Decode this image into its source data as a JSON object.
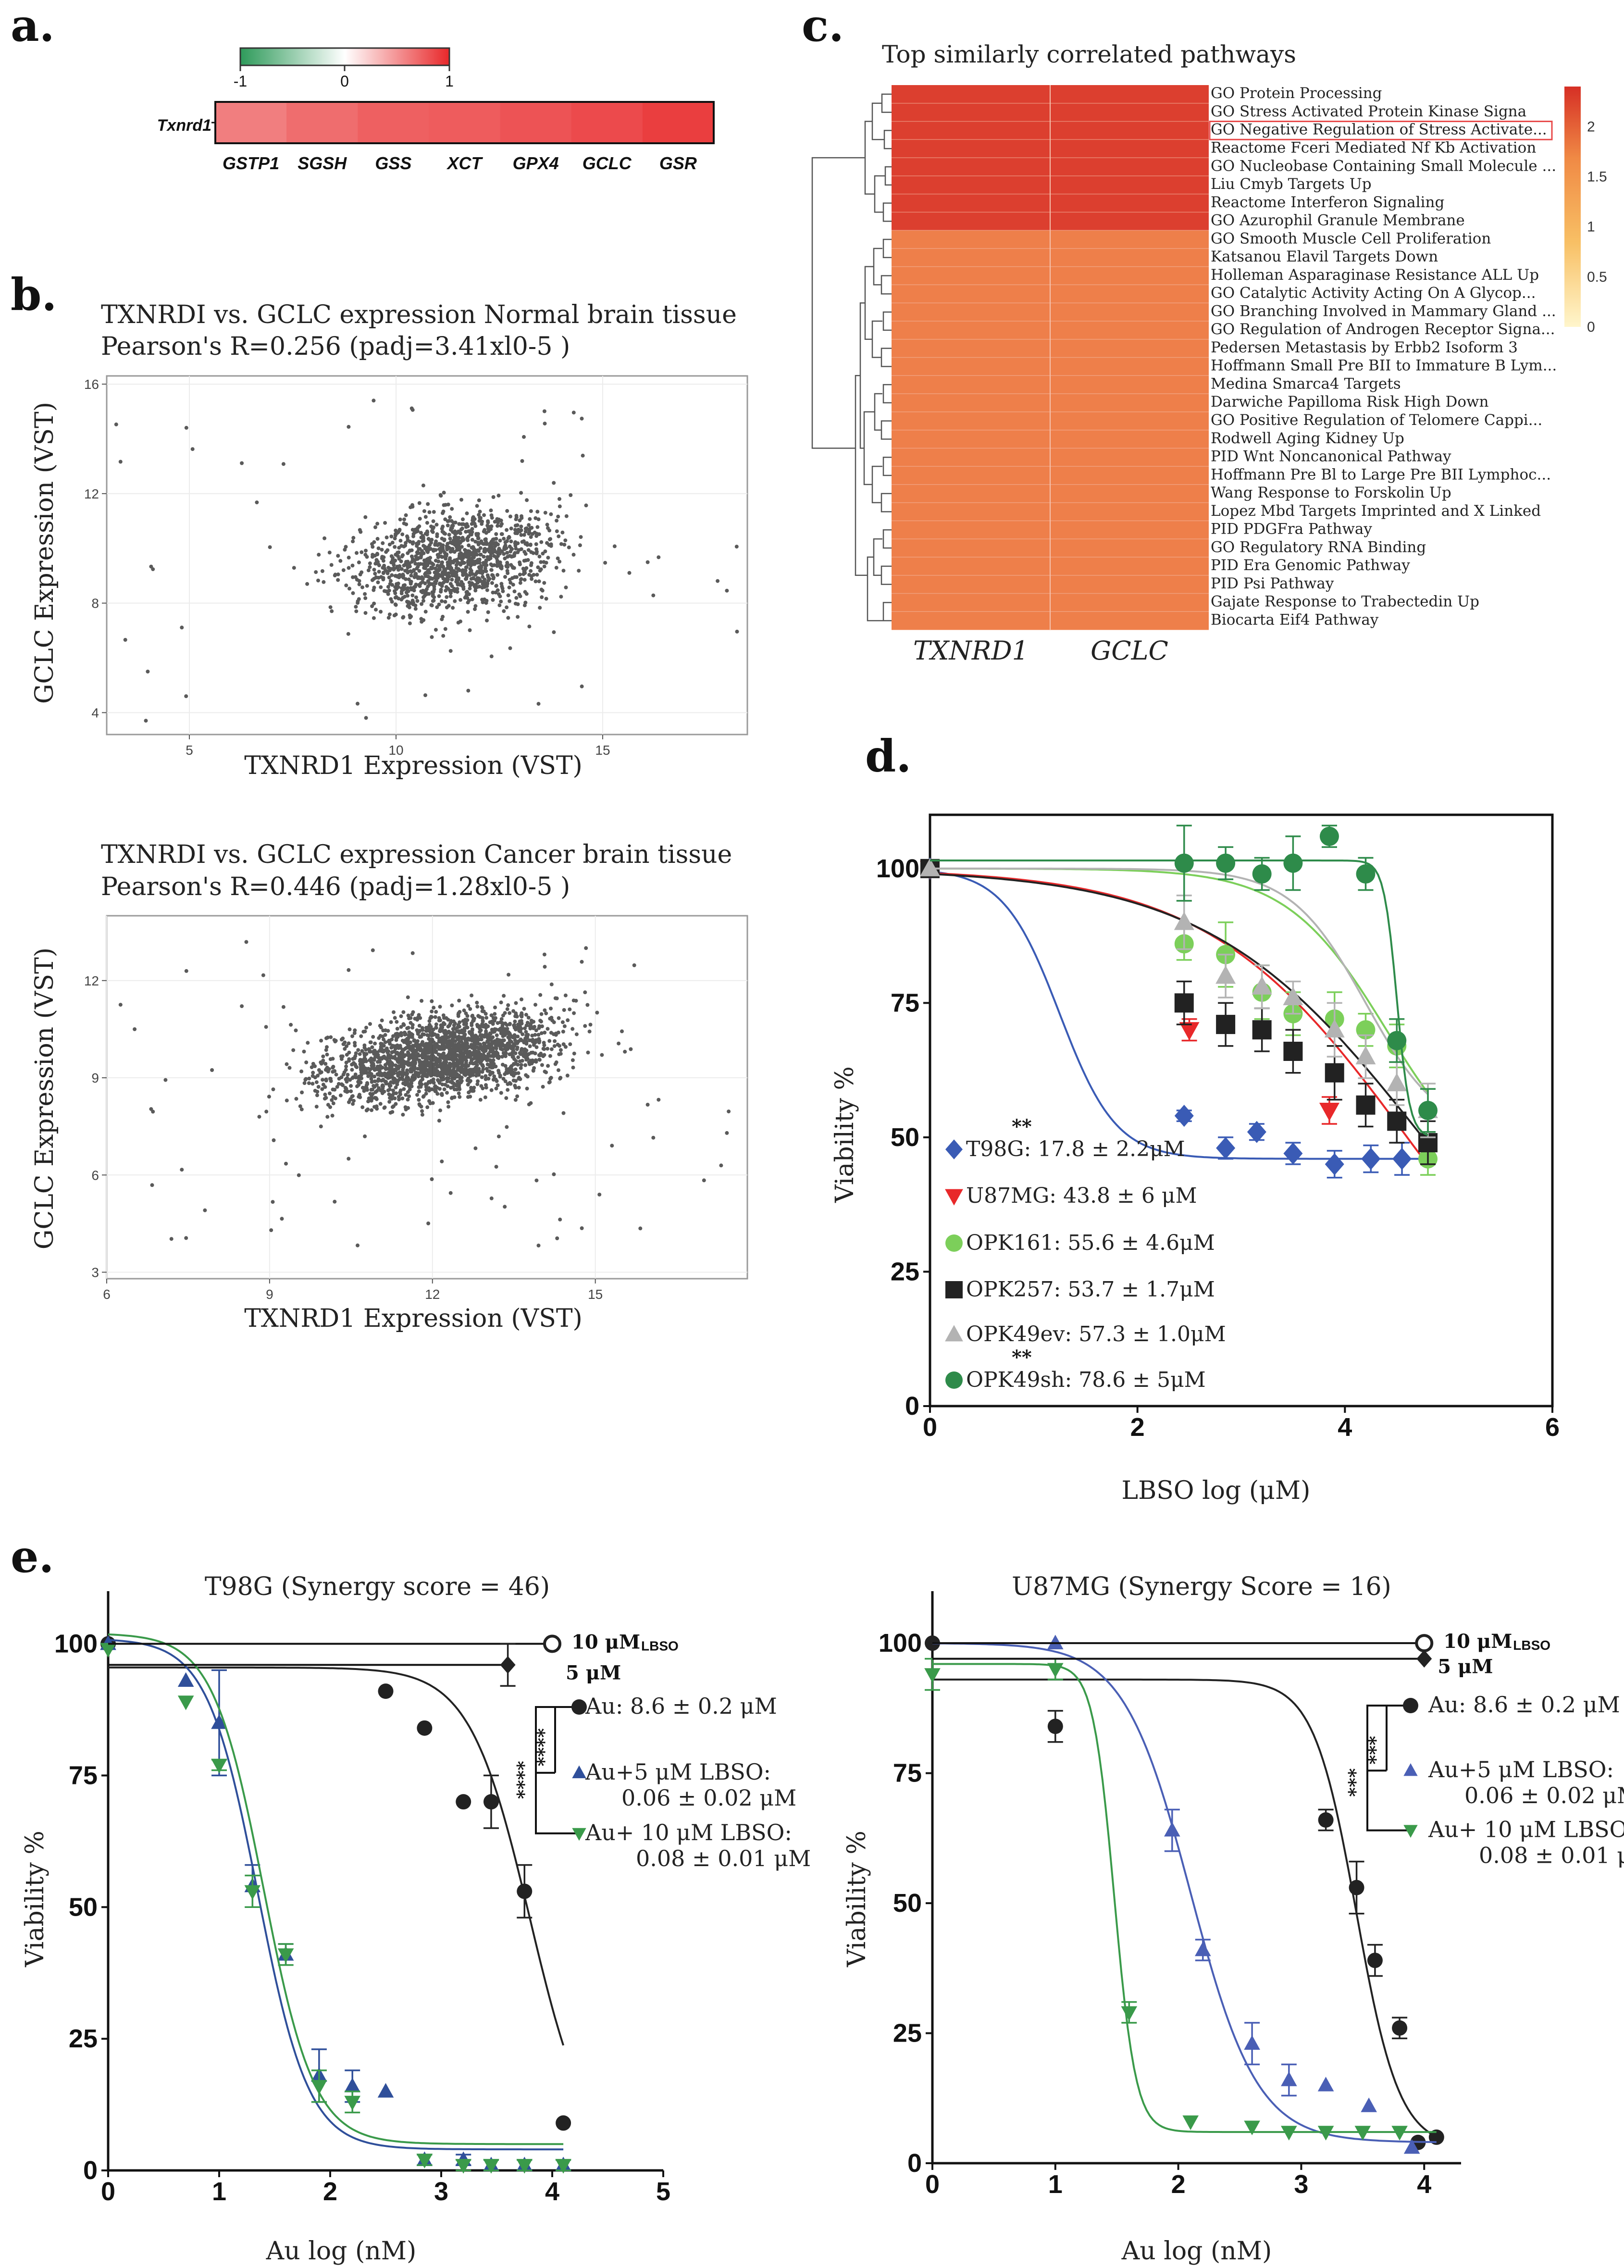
{
  "panels": {
    "a": {
      "letter": "a."
    },
    "b": {
      "letter": "b."
    },
    "c": {
      "letter": "c."
    },
    "d": {
      "letter": "d."
    },
    "e": {
      "letter": "e."
    }
  },
  "chart_data": [
    {
      "id": "a",
      "type": "heatmap",
      "title": "",
      "row_label": "Txnrd1",
      "columns": [
        "GSTP1",
        "SGSH",
        "GSS",
        "XCT",
        "GPX4",
        "GCLC",
        "GSR"
      ],
      "values": [
        0.6,
        0.68,
        0.74,
        0.76,
        0.8,
        0.84,
        0.9
      ],
      "colorbar": {
        "min": -1,
        "max": 1,
        "ticks": [
          "-1",
          "0",
          "1"
        ],
        "low_color": "#2e9a5a",
        "mid_color": "#ffffff",
        "high_color": "#e8282a"
      }
    },
    {
      "id": "b1",
      "type": "scatter",
      "title_line1": "TXNRDI vs. GCLC expression Normal brain tissue",
      "title_line2": "Pearson's R=0.256 (padj=3.41xl0-5 )",
      "xlabel": "TXNRD1 Expression (VST)",
      "ylabel": "GCLC Expression (VST)",
      "xlim": [
        3,
        18.5
      ],
      "ylim": [
        3.2,
        16.3
      ],
      "xticks": [
        5,
        10,
        15
      ],
      "yticks": [
        4,
        8,
        12,
        16
      ],
      "n_points": 3600,
      "cluster": {
        "cx": 11.4,
        "cy": 9.6,
        "sx": 1.7,
        "sy": 1.2,
        "r": 0.256
      }
    },
    {
      "id": "b2",
      "type": "scatter",
      "title_line1": "TXNRDI vs. GCLC expression Cancer brain tissue",
      "title_line2": "Pearson's R=0.446 (padj=1.28xl0-5 )",
      "xlabel": "TXNRD1 Expression (VST)",
      "ylabel": "GCLC Expression (VST)",
      "xlim": [
        6,
        17.8
      ],
      "ylim": [
        2.8,
        14
      ],
      "xticks": [
        6,
        9,
        12,
        15
      ],
      "yticks": [
        3,
        6,
        9,
        12
      ],
      "n_points": 2300,
      "cluster": {
        "cx": 12.2,
        "cy": 9.7,
        "sx": 1.5,
        "sy": 0.9,
        "r": 0.446
      }
    },
    {
      "id": "c",
      "type": "heatmap",
      "title": "Top similarly correlated pathways",
      "columns": [
        "TXNRD1",
        "GCLC"
      ],
      "rows": [
        "GO Protein Processing",
        "GO Stress Activated Protein Kinase Signa",
        "GO Negative Regulation of Stress Activate...",
        "Reactome Fceri Mediated Nf Kb Activation",
        "GO Nucleobase Containing Small Molecule ...",
        "Liu Cmyb Targets Up",
        "Reactome Interferon Signaling",
        "GO Azurophil Granule Membrane",
        "GO Smooth Muscle Cell Proliferation",
        "Katsanou Elavil Targets Down",
        "Holleman Asparaginase Resistance ALL Up",
        "GO Catalytic Activity Acting On A Glycop...",
        "GO Branching Involved in Mammary Gland ...",
        "GO Regulation of Androgen Receptor Signa...",
        "Pedersen Metastasis by Erbb2 Isoform 3",
        "Hoffmann Small Pre BII to Immature B Lym...",
        "Medina Smarca4 Targets",
        "Darwiche Papilloma Risk High Down",
        "GO Positive Regulation of Telomere Cappi...",
        "Rodwell Aging Kidney Up",
        "PID Wnt Noncanonical Pathway",
        "Hoffmann Pre Bl to Large Pre BII Lymphoc...",
        "Wang Response to Forskolin Up",
        "Lopez Mbd Targets Imprinted and X Linked",
        "PID PDGFra Pathway",
        "GO Regulatory RNA Binding",
        "PID Era Genomic Pathway",
        "PID Psi Pathway",
        "Gajate Response to Trabectedin Up",
        "Biocarta Eif4 Pathway"
      ],
      "values_row": [
        2.15,
        2.2,
        2.25,
        2.25,
        2.2,
        2.25,
        2.2,
        2.2,
        1.85,
        1.8,
        1.78,
        1.82,
        1.8,
        1.78,
        1.8,
        1.85,
        1.82,
        1.85,
        1.8,
        1.82,
        1.78,
        1.8,
        1.85,
        1.8,
        1.82,
        1.85,
        1.8,
        1.85,
        1.82,
        1.8
      ],
      "highlighted_row": "GO Negative Regulation of Stress Activate...",
      "colorbar": {
        "min": 0,
        "max": 2.4,
        "ticks": [
          "2",
          "1.5",
          "1",
          "0.5",
          "0"
        ]
      }
    },
    {
      "id": "d",
      "type": "line",
      "title": "",
      "xlabel": "LBSO log (μM)",
      "ylabel": "Viability %",
      "xlim": [
        0,
        6
      ],
      "ylim": [
        0,
        110
      ],
      "xticks": [
        "0",
        "2",
        "4",
        "6"
      ],
      "yticks": [
        "0",
        "25",
        "50",
        "75",
        "100"
      ],
      "series": [
        {
          "name": "T98G",
          "label": "T98G: 17.8 ± 2.2μM",
          "sig": "**",
          "color": "#3a5bb5",
          "marker": "diamond",
          "x": [
            0,
            2.45,
            2.85,
            3.15,
            3.5,
            3.9,
            4.25,
            4.55
          ],
          "y": [
            100,
            54,
            48,
            51,
            47,
            45,
            46,
            46
          ],
          "err": [
            0,
            1,
            2,
            1.5,
            2,
            2.5,
            2.5,
            3
          ],
          "fit": {
            "top": 100,
            "bottom": 46,
            "logec50": 1.25,
            "hill": 1.6
          }
        },
        {
          "name": "U87MG",
          "label": "U87MG: 43.8 ± 6 μM",
          "sig": "",
          "color": "#e8282a",
          "marker": "triangle-down",
          "x": [
            0,
            2.5,
            3.85
          ],
          "y": [
            100,
            70,
            55
          ],
          "err": [
            0,
            2,
            2.5
          ],
          "fit": {
            "top": 100,
            "bottom": 0,
            "logec50": 4.6,
            "hill": 0.45
          }
        },
        {
          "name": "OPK161",
          "label": "OPK161: 55.6 ± 4.6μM",
          "sig": "",
          "color": "#7ccf5a",
          "marker": "circle",
          "x": [
            0,
            2.45,
            2.85,
            3.2,
            3.5,
            3.9,
            4.2,
            4.5,
            4.8
          ],
          "y": [
            100,
            86,
            84,
            77,
            73,
            72,
            70,
            67,
            46
          ],
          "err": [
            0,
            3,
            6,
            5,
            4,
            5,
            3,
            4,
            3
          ],
          "fit": {
            "top": 100,
            "bottom": 40,
            "logec50": 4.4,
            "hill": 0.9
          }
        },
        {
          "name": "OPK257",
          "label": "OPK257: 53.7 ± 1.7μM",
          "sig": "",
          "color": "#222222",
          "marker": "square",
          "x": [
            0,
            2.45,
            2.85,
            3.2,
            3.5,
            3.9,
            4.2,
            4.5,
            4.8
          ],
          "y": [
            100,
            75,
            71,
            70,
            66,
            62,
            56,
            53,
            49
          ],
          "err": [
            0,
            4,
            4,
            4,
            4,
            5,
            4,
            4,
            4
          ],
          "fit": {
            "top": 100,
            "bottom": 0,
            "logec50": 4.75,
            "hill": 0.42
          }
        },
        {
          "name": "OPK49ev",
          "label": "OPK49ev: 57.3 ± 1.0μM",
          "sig": "",
          "color": "#b3b3b3",
          "marker": "triangle-up",
          "x": [
            0,
            2.45,
            2.85,
            3.2,
            3.5,
            3.9,
            4.2,
            4.5,
            4.8
          ],
          "y": [
            100,
            90,
            80,
            78,
            76,
            70,
            65,
            60,
            55
          ],
          "err": [
            0,
            5,
            4,
            4,
            3,
            5,
            4,
            4,
            5
          ],
          "fit": {
            "top": 100,
            "bottom": 50,
            "logec50": 4.2,
            "hill": 1.2
          }
        },
        {
          "name": "OPK49sh",
          "label": "OPK49sh: 78.6 ± 5μM",
          "sig": "**",
          "color": "#2e8b4a",
          "marker": "circle",
          "x": [
            2.45,
            2.85,
            3.2,
            3.5,
            3.85,
            4.2,
            4.5,
            4.8
          ],
          "y": [
            101,
            101,
            99,
            101,
            106,
            99,
            68,
            55
          ],
          "err": [
            7,
            3,
            3,
            5,
            2,
            3,
            4,
            4
          ],
          "fit": {
            "top": 101.5,
            "bottom": 50,
            "logec50": 4.5,
            "hill": 7
          }
        }
      ]
    },
    {
      "id": "e1",
      "type": "line",
      "title": "T98G (Synergy score = 46)",
      "xlabel": "Au log (nM)",
      "ylabel": "Viability %",
      "xlim": [
        0,
        5
      ],
      "ylim": [
        0,
        110
      ],
      "xticks": [
        "0",
        "1",
        "2",
        "3",
        "4",
        "5"
      ],
      "yticks": [
        "0",
        "25",
        "50",
        "75",
        "100"
      ],
      "series": [
        {
          "name": "Au",
          "label": "Au: 8.6 ± 0.2 μM",
          "color": "#222222",
          "marker": "circle",
          "x": [
            0,
            2.5,
            2.85,
            3.2,
            3.45,
            3.75,
            4.1
          ],
          "y": [
            100,
            91,
            84,
            70,
            70,
            53,
            9
          ],
          "err": [
            0,
            0,
            0,
            0,
            5,
            5,
            0
          ],
          "fit": {
            "top": 95.5,
            "bottom": 0,
            "logec50": 3.8,
            "hill": 1.6
          }
        },
        {
          "name": "Au+5 μM LBSO",
          "label_line1": "Au+5 μM LBSO:",
          "label_line2": "0.06 ± 0.02 μM",
          "color": "#2f4f9a",
          "marker": "triangle-up",
          "x": [
            0,
            0.7,
            1.0,
            1.3,
            1.6,
            1.9,
            2.2,
            2.5,
            2.85,
            3.2,
            3.45,
            3.75,
            4.1
          ],
          "y": [
            100,
            93,
            85,
            54,
            41,
            18,
            16,
            15,
            2,
            2,
            1,
            1,
            1
          ],
          "err": [
            0,
            0,
            10,
            4,
            2,
            5,
            3,
            0,
            1,
            1,
            1,
            1,
            1
          ],
          "fit": {
            "top": 101,
            "bottom": 4,
            "logec50": 1.35,
            "hill": 1.9
          }
        },
        {
          "name": "Au+ 10 μM LBSO",
          "label_line1": "Au+ 10 μM LBSO:",
          "label_line2": "0.08 ± 0.01 μM",
          "color": "#3a9a4a",
          "marker": "triangle-down",
          "x": [
            0,
            0.7,
            1.0,
            1.3,
            1.6,
            1.9,
            2.2,
            2.85,
            3.2,
            3.45,
            3.75,
            4.1
          ],
          "y": [
            99,
            89,
            77,
            53,
            41,
            16,
            13,
            2,
            1,
            1,
            1,
            1
          ],
          "err": [
            0,
            0,
            1,
            3,
            2,
            3,
            2,
            1,
            1,
            1,
            1,
            1
          ],
          "fit": {
            "top": 102,
            "bottom": 5,
            "logec50": 1.4,
            "hill": 1.9
          }
        },
        {
          "name": "10 μM LBSO",
          "label": "10 μM",
          "label_suffix": "LBSO",
          "color": "#222222",
          "marker": "open-circle",
          "x": [
            4.0
          ],
          "y": [
            100
          ],
          "err": [
            0
          ]
        },
        {
          "name": "5 μM LBSO",
          "label": "5 μM",
          "color": "#222222",
          "marker": "diamond",
          "x": [
            3.6
          ],
          "y": [
            96
          ],
          "err": [
            4
          ]
        }
      ],
      "significance": [
        "****",
        "****"
      ]
    },
    {
      "id": "e2",
      "type": "line",
      "title": "U87MG (Synergy Score = 16)",
      "xlabel": "Au log (nM)",
      "ylabel": "Viability %",
      "xlim": [
        0,
        4.3
      ],
      "ylim": [
        0,
        110
      ],
      "xticks": [
        "0",
        "1",
        "2",
        "3",
        "4"
      ],
      "yticks": [
        "0",
        "25",
        "50",
        "75",
        "100"
      ],
      "series": [
        {
          "name": "Au",
          "label": "Au: 8.6 ± 0.2 μM",
          "color": "#222222",
          "marker": "circle",
          "x": [
            0,
            1.0,
            3.2,
            3.45,
            3.6,
            3.8,
            3.95,
            4.1
          ],
          "y": [
            100,
            84,
            66,
            53,
            39,
            26,
            4,
            5
          ],
          "err": [
            0,
            3,
            2,
            5,
            3,
            2,
            0,
            0
          ],
          "fit": {
            "top": 93,
            "bottom": 3,
            "logec50": 3.45,
            "hill": 2.5
          }
        },
        {
          "name": "Au+5 μM LBSO",
          "label_line1": "Au+5 μM LBSO:",
          "label_line2": "0.06 ± 0.02 μM",
          "color": "#4a5fb5",
          "marker": "triangle-up",
          "x": [
            1.0,
            1.95,
            2.2,
            2.6,
            2.9,
            3.2,
            3.55,
            3.9
          ],
          "y": [
            100,
            64,
            41,
            23,
            16,
            15,
            11,
            3
          ],
          "err": [
            0,
            4,
            2,
            4,
            3,
            0,
            0,
            0
          ],
          "fit": {
            "top": 100,
            "bottom": 4,
            "logec50": 2.1,
            "hill": 1.6
          }
        },
        {
          "name": "Au+ 10 μM LBSO",
          "label_line1": "Au+ 10 μM LBSO:",
          "label_line2": "0.08 ± 0.01 μM",
          "color": "#3a9a4a",
          "marker": "triangle-down",
          "x": [
            0,
            1.0,
            1.6,
            2.1,
            2.6,
            2.9,
            3.2,
            3.5,
            3.8
          ],
          "y": [
            94,
            95,
            29,
            8,
            7,
            6,
            6,
            6,
            6
          ],
          "err": [
            3,
            2,
            2,
            0,
            0,
            0,
            0,
            0,
            0
          ],
          "fit": {
            "top": 96,
            "bottom": 6,
            "logec50": 1.48,
            "hill": 5
          }
        },
        {
          "name": "10 μM LBSO",
          "label": "10 μM",
          "label_suffix": "LBSO",
          "color": "#222222",
          "marker": "open-circle",
          "x": [
            4.0
          ],
          "y": [
            100
          ],
          "err": [
            0
          ]
        },
        {
          "name": "5 μM LBSO",
          "label": "5 μM",
          "color": "#222222",
          "marker": "diamond",
          "x": [
            4.0
          ],
          "y": [
            97
          ],
          "err": [
            0
          ]
        }
      ],
      "significance": [
        "***",
        "***"
      ]
    }
  ]
}
